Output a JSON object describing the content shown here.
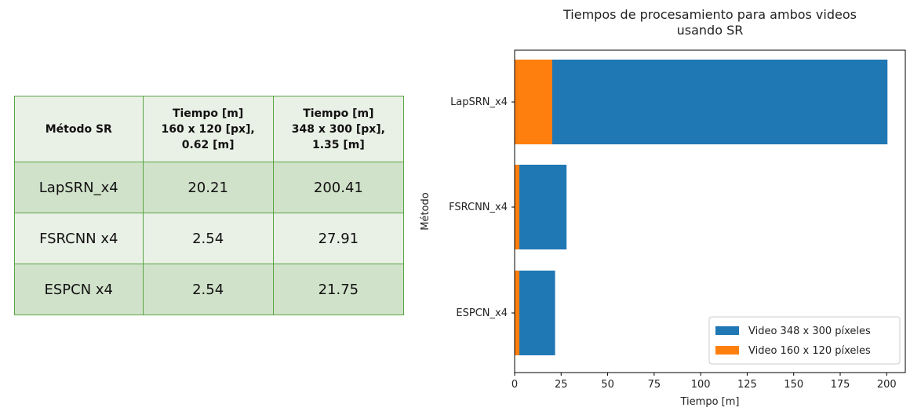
{
  "table": {
    "header": {
      "col0": "Método SR",
      "col1": [
        "Tiempo [m]",
        "160 x 120 [px],",
        "0.62 [m]"
      ],
      "col2": [
        "Tiempo [m]",
        "348 x 300 [px],",
        "1.35 [m]"
      ]
    },
    "rows": [
      {
        "method": "LapSRN_x4",
        "t160": "20.21",
        "t348": "200.41"
      },
      {
        "method": "FSRCNN x4",
        "t160": "2.54",
        "t348": "27.91"
      },
      {
        "method": "ESPCN x4",
        "t160": "2.54",
        "t348": "21.75"
      }
    ]
  },
  "chart_data": {
    "type": "bar",
    "orientation": "horizontal",
    "stacked": true,
    "title": [
      "Tiempos de procesamiento para ambos videos",
      "usando SR"
    ],
    "xlabel": "Tiempo [m]",
    "ylabel": "Método",
    "categories": [
      "LapSRN_x4",
      "FSRCNN_x4",
      "ESPCN_x4"
    ],
    "series": [
      {
        "name": "Video 348 x 300 píxeles",
        "color": "#1f77b4",
        "values": [
          200.41,
          27.91,
          21.75
        ]
      },
      {
        "name": "Video 160 x 120 píxeles",
        "color": "#ff7f0e",
        "values": [
          20.21,
          2.54,
          2.54
        ]
      }
    ],
    "xlim": [
      0,
      210
    ],
    "xticks": [
      0,
      25,
      50,
      75,
      100,
      125,
      150,
      175,
      200
    ],
    "legend_position": "lower-right",
    "grid": false
  }
}
